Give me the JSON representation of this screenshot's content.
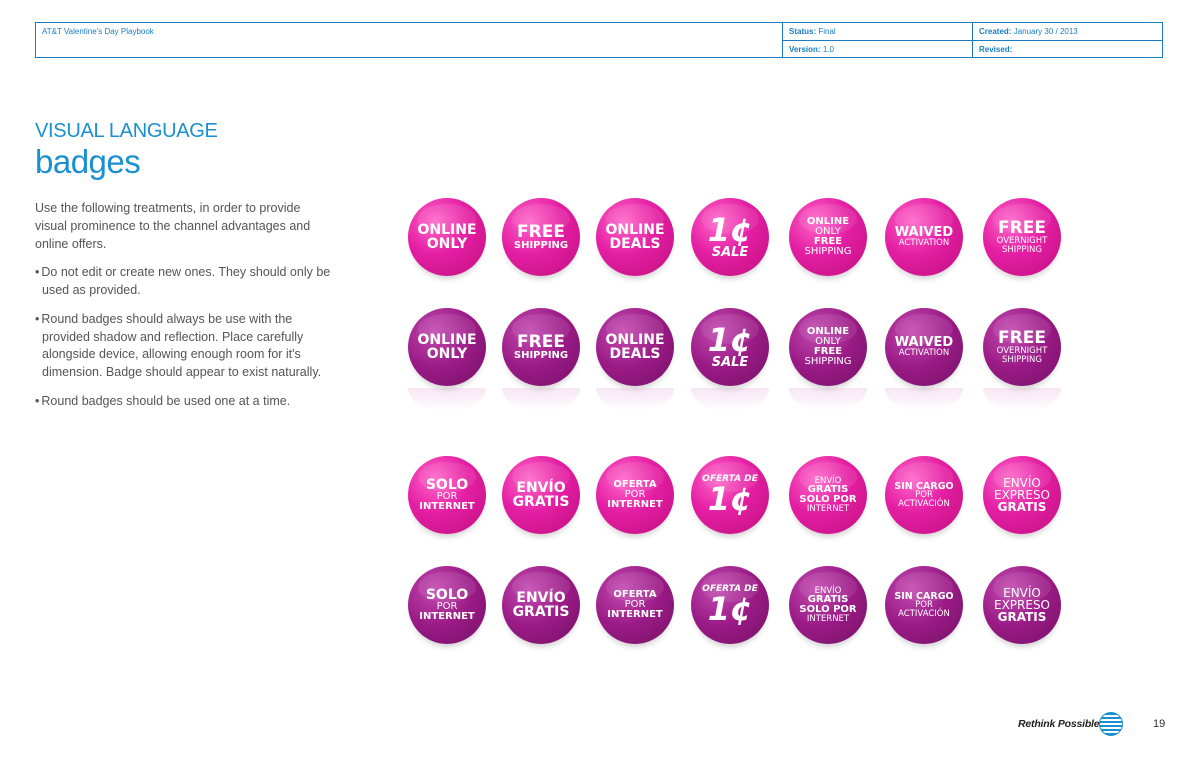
{
  "header": {
    "doc_title": "AT&T Valentine's Day Playbook",
    "status_label": "Status:",
    "status_value": "Final",
    "version_label": "Version:",
    "version_value": "1.0",
    "created_label": "Created:",
    "created_value": "January 30 / 2013",
    "revised_label": "Revised:",
    "revised_value": ""
  },
  "section_label": "VISUAL LANGUAGE",
  "page_title": "badges",
  "intro": "Use the following treatments, in order to provide visual prominence to the channel advantages and online offers.",
  "bullets": [
    "Do not edit or create new ones. They should only be used as provided.",
    "Round badges should always be use with the provided shadow and reflection. Place carefully alongside device, allowing enough room for it's dimension. Badge should appear to exist naturally.",
    "Round badges should be used one at a time."
  ],
  "badges_en": [
    [
      "ONLINE",
      "ONLY"
    ],
    [
      "FREE",
      "SHIPPING"
    ],
    [
      "ONLINE",
      "DEALS"
    ],
    [
      "1¢",
      "SALE"
    ],
    [
      "ONLINE",
      "ONLY",
      "FREE",
      "SHIPPING"
    ],
    [
      "WAIVED",
      "ACTIVATION"
    ],
    [
      "FREE",
      "OVERNIGHT",
      "SHIPPING"
    ]
  ],
  "badges_es": [
    [
      "SOLO",
      "POR",
      "INTERNET"
    ],
    [
      "ENVÍO",
      "GRATIS"
    ],
    [
      "OFERTA",
      "POR",
      "INTERNET"
    ],
    [
      "OFERTA DE",
      "1¢"
    ],
    [
      "ENVÍO",
      "GRATIS",
      "SOLO POR",
      "INTERNET"
    ],
    [
      "SIN CARGO",
      "POR",
      "ACTIVACIÓN"
    ],
    [
      "ENVÍO",
      "EXPRESO",
      "GRATIS"
    ]
  ],
  "colors": {
    "accent": "#1a8fd1",
    "badge_light": "#e41ea3",
    "badge_dark": "#9a1a85"
  },
  "footer": {
    "tagline": "Rethink Possible",
    "logo_icon": "att-globe-icon",
    "page_number": "19"
  }
}
